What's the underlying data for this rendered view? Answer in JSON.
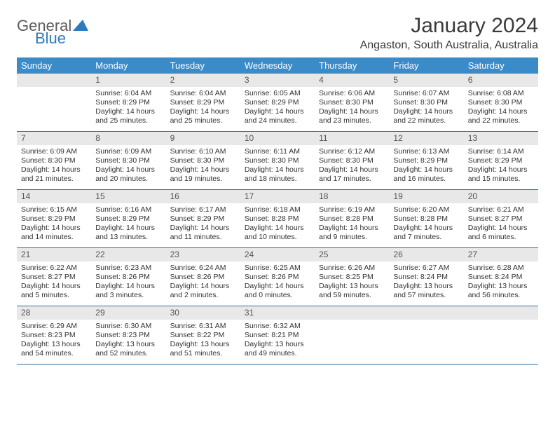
{
  "logo": {
    "line1": "General",
    "line2": "Blue"
  },
  "title": "January 2024",
  "location": "Angaston, South Australia, Australia",
  "colors": {
    "header_bg": "#3b8bc9",
    "header_text": "#ffffff",
    "daynum_bg": "#e8e8e8",
    "week_divider": "#2b6fa5",
    "logo_gray": "#5c5c5c",
    "logo_blue": "#2b7bbf",
    "text": "#333333"
  },
  "weekdays": [
    "Sunday",
    "Monday",
    "Tuesday",
    "Wednesday",
    "Thursday",
    "Friday",
    "Saturday"
  ],
  "weeks": [
    [
      {
        "num": "",
        "sunrise": "",
        "sunset": "",
        "daylight": ""
      },
      {
        "num": "1",
        "sunrise": "Sunrise: 6:04 AM",
        "sunset": "Sunset: 8:29 PM",
        "daylight": "Daylight: 14 hours and 25 minutes."
      },
      {
        "num": "2",
        "sunrise": "Sunrise: 6:04 AM",
        "sunset": "Sunset: 8:29 PM",
        "daylight": "Daylight: 14 hours and 25 minutes."
      },
      {
        "num": "3",
        "sunrise": "Sunrise: 6:05 AM",
        "sunset": "Sunset: 8:29 PM",
        "daylight": "Daylight: 14 hours and 24 minutes."
      },
      {
        "num": "4",
        "sunrise": "Sunrise: 6:06 AM",
        "sunset": "Sunset: 8:30 PM",
        "daylight": "Daylight: 14 hours and 23 minutes."
      },
      {
        "num": "5",
        "sunrise": "Sunrise: 6:07 AM",
        "sunset": "Sunset: 8:30 PM",
        "daylight": "Daylight: 14 hours and 22 minutes."
      },
      {
        "num": "6",
        "sunrise": "Sunrise: 6:08 AM",
        "sunset": "Sunset: 8:30 PM",
        "daylight": "Daylight: 14 hours and 22 minutes."
      }
    ],
    [
      {
        "num": "7",
        "sunrise": "Sunrise: 6:09 AM",
        "sunset": "Sunset: 8:30 PM",
        "daylight": "Daylight: 14 hours and 21 minutes."
      },
      {
        "num": "8",
        "sunrise": "Sunrise: 6:09 AM",
        "sunset": "Sunset: 8:30 PM",
        "daylight": "Daylight: 14 hours and 20 minutes."
      },
      {
        "num": "9",
        "sunrise": "Sunrise: 6:10 AM",
        "sunset": "Sunset: 8:30 PM",
        "daylight": "Daylight: 14 hours and 19 minutes."
      },
      {
        "num": "10",
        "sunrise": "Sunrise: 6:11 AM",
        "sunset": "Sunset: 8:30 PM",
        "daylight": "Daylight: 14 hours and 18 minutes."
      },
      {
        "num": "11",
        "sunrise": "Sunrise: 6:12 AM",
        "sunset": "Sunset: 8:30 PM",
        "daylight": "Daylight: 14 hours and 17 minutes."
      },
      {
        "num": "12",
        "sunrise": "Sunrise: 6:13 AM",
        "sunset": "Sunset: 8:29 PM",
        "daylight": "Daylight: 14 hours and 16 minutes."
      },
      {
        "num": "13",
        "sunrise": "Sunrise: 6:14 AM",
        "sunset": "Sunset: 8:29 PM",
        "daylight": "Daylight: 14 hours and 15 minutes."
      }
    ],
    [
      {
        "num": "14",
        "sunrise": "Sunrise: 6:15 AM",
        "sunset": "Sunset: 8:29 PM",
        "daylight": "Daylight: 14 hours and 14 minutes."
      },
      {
        "num": "15",
        "sunrise": "Sunrise: 6:16 AM",
        "sunset": "Sunset: 8:29 PM",
        "daylight": "Daylight: 14 hours and 13 minutes."
      },
      {
        "num": "16",
        "sunrise": "Sunrise: 6:17 AM",
        "sunset": "Sunset: 8:29 PM",
        "daylight": "Daylight: 14 hours and 11 minutes."
      },
      {
        "num": "17",
        "sunrise": "Sunrise: 6:18 AM",
        "sunset": "Sunset: 8:28 PM",
        "daylight": "Daylight: 14 hours and 10 minutes."
      },
      {
        "num": "18",
        "sunrise": "Sunrise: 6:19 AM",
        "sunset": "Sunset: 8:28 PM",
        "daylight": "Daylight: 14 hours and 9 minutes."
      },
      {
        "num": "19",
        "sunrise": "Sunrise: 6:20 AM",
        "sunset": "Sunset: 8:28 PM",
        "daylight": "Daylight: 14 hours and 7 minutes."
      },
      {
        "num": "20",
        "sunrise": "Sunrise: 6:21 AM",
        "sunset": "Sunset: 8:27 PM",
        "daylight": "Daylight: 14 hours and 6 minutes."
      }
    ],
    [
      {
        "num": "21",
        "sunrise": "Sunrise: 6:22 AM",
        "sunset": "Sunset: 8:27 PM",
        "daylight": "Daylight: 14 hours and 5 minutes."
      },
      {
        "num": "22",
        "sunrise": "Sunrise: 6:23 AM",
        "sunset": "Sunset: 8:26 PM",
        "daylight": "Daylight: 14 hours and 3 minutes."
      },
      {
        "num": "23",
        "sunrise": "Sunrise: 6:24 AM",
        "sunset": "Sunset: 8:26 PM",
        "daylight": "Daylight: 14 hours and 2 minutes."
      },
      {
        "num": "24",
        "sunrise": "Sunrise: 6:25 AM",
        "sunset": "Sunset: 8:26 PM",
        "daylight": "Daylight: 14 hours and 0 minutes."
      },
      {
        "num": "25",
        "sunrise": "Sunrise: 6:26 AM",
        "sunset": "Sunset: 8:25 PM",
        "daylight": "Daylight: 13 hours and 59 minutes."
      },
      {
        "num": "26",
        "sunrise": "Sunrise: 6:27 AM",
        "sunset": "Sunset: 8:24 PM",
        "daylight": "Daylight: 13 hours and 57 minutes."
      },
      {
        "num": "27",
        "sunrise": "Sunrise: 6:28 AM",
        "sunset": "Sunset: 8:24 PM",
        "daylight": "Daylight: 13 hours and 56 minutes."
      }
    ],
    [
      {
        "num": "28",
        "sunrise": "Sunrise: 6:29 AM",
        "sunset": "Sunset: 8:23 PM",
        "daylight": "Daylight: 13 hours and 54 minutes."
      },
      {
        "num": "29",
        "sunrise": "Sunrise: 6:30 AM",
        "sunset": "Sunset: 8:23 PM",
        "daylight": "Daylight: 13 hours and 52 minutes."
      },
      {
        "num": "30",
        "sunrise": "Sunrise: 6:31 AM",
        "sunset": "Sunset: 8:22 PM",
        "daylight": "Daylight: 13 hours and 51 minutes."
      },
      {
        "num": "31",
        "sunrise": "Sunrise: 6:32 AM",
        "sunset": "Sunset: 8:21 PM",
        "daylight": "Daylight: 13 hours and 49 minutes."
      },
      {
        "num": "",
        "sunrise": "",
        "sunset": "",
        "daylight": ""
      },
      {
        "num": "",
        "sunrise": "",
        "sunset": "",
        "daylight": ""
      },
      {
        "num": "",
        "sunrise": "",
        "sunset": "",
        "daylight": ""
      }
    ]
  ]
}
